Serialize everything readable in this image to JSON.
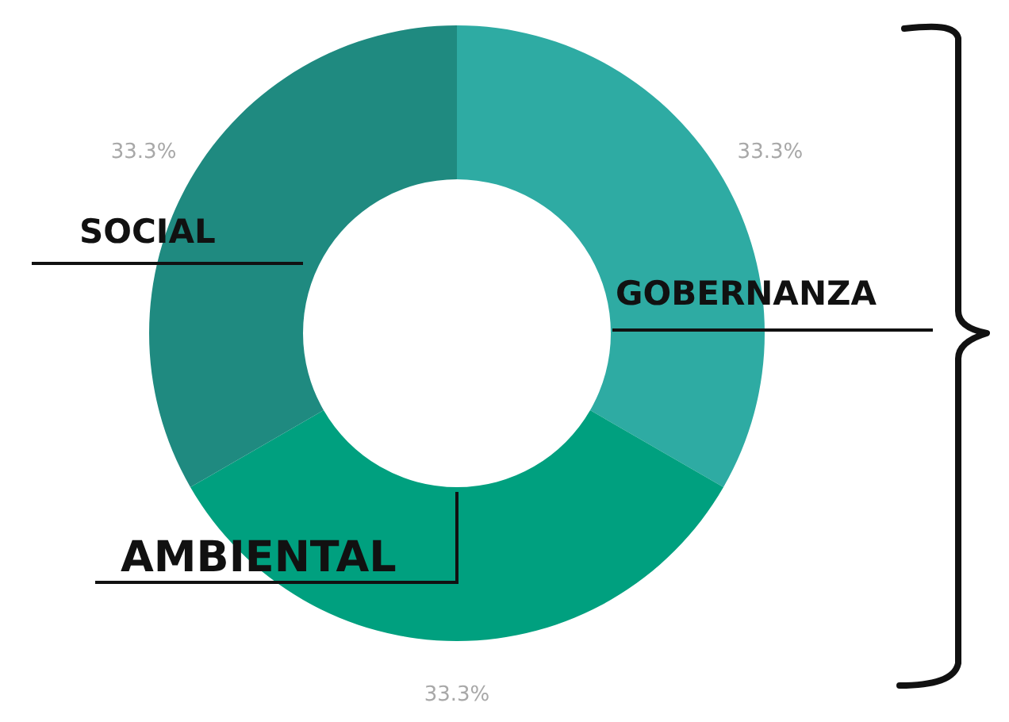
{
  "chart_data": {
    "type": "donut",
    "categories": [
      "GOBERNANZA",
      "AMBIENTAL",
      "SOCIAL"
    ],
    "values": [
      33.3,
      33.3,
      33.3
    ],
    "value_labels": [
      "33.3%",
      "33.3%",
      "33.3%"
    ],
    "colors": [
      "#2eaba3",
      "#00a07f",
      "#1f8a80"
    ]
  }
}
